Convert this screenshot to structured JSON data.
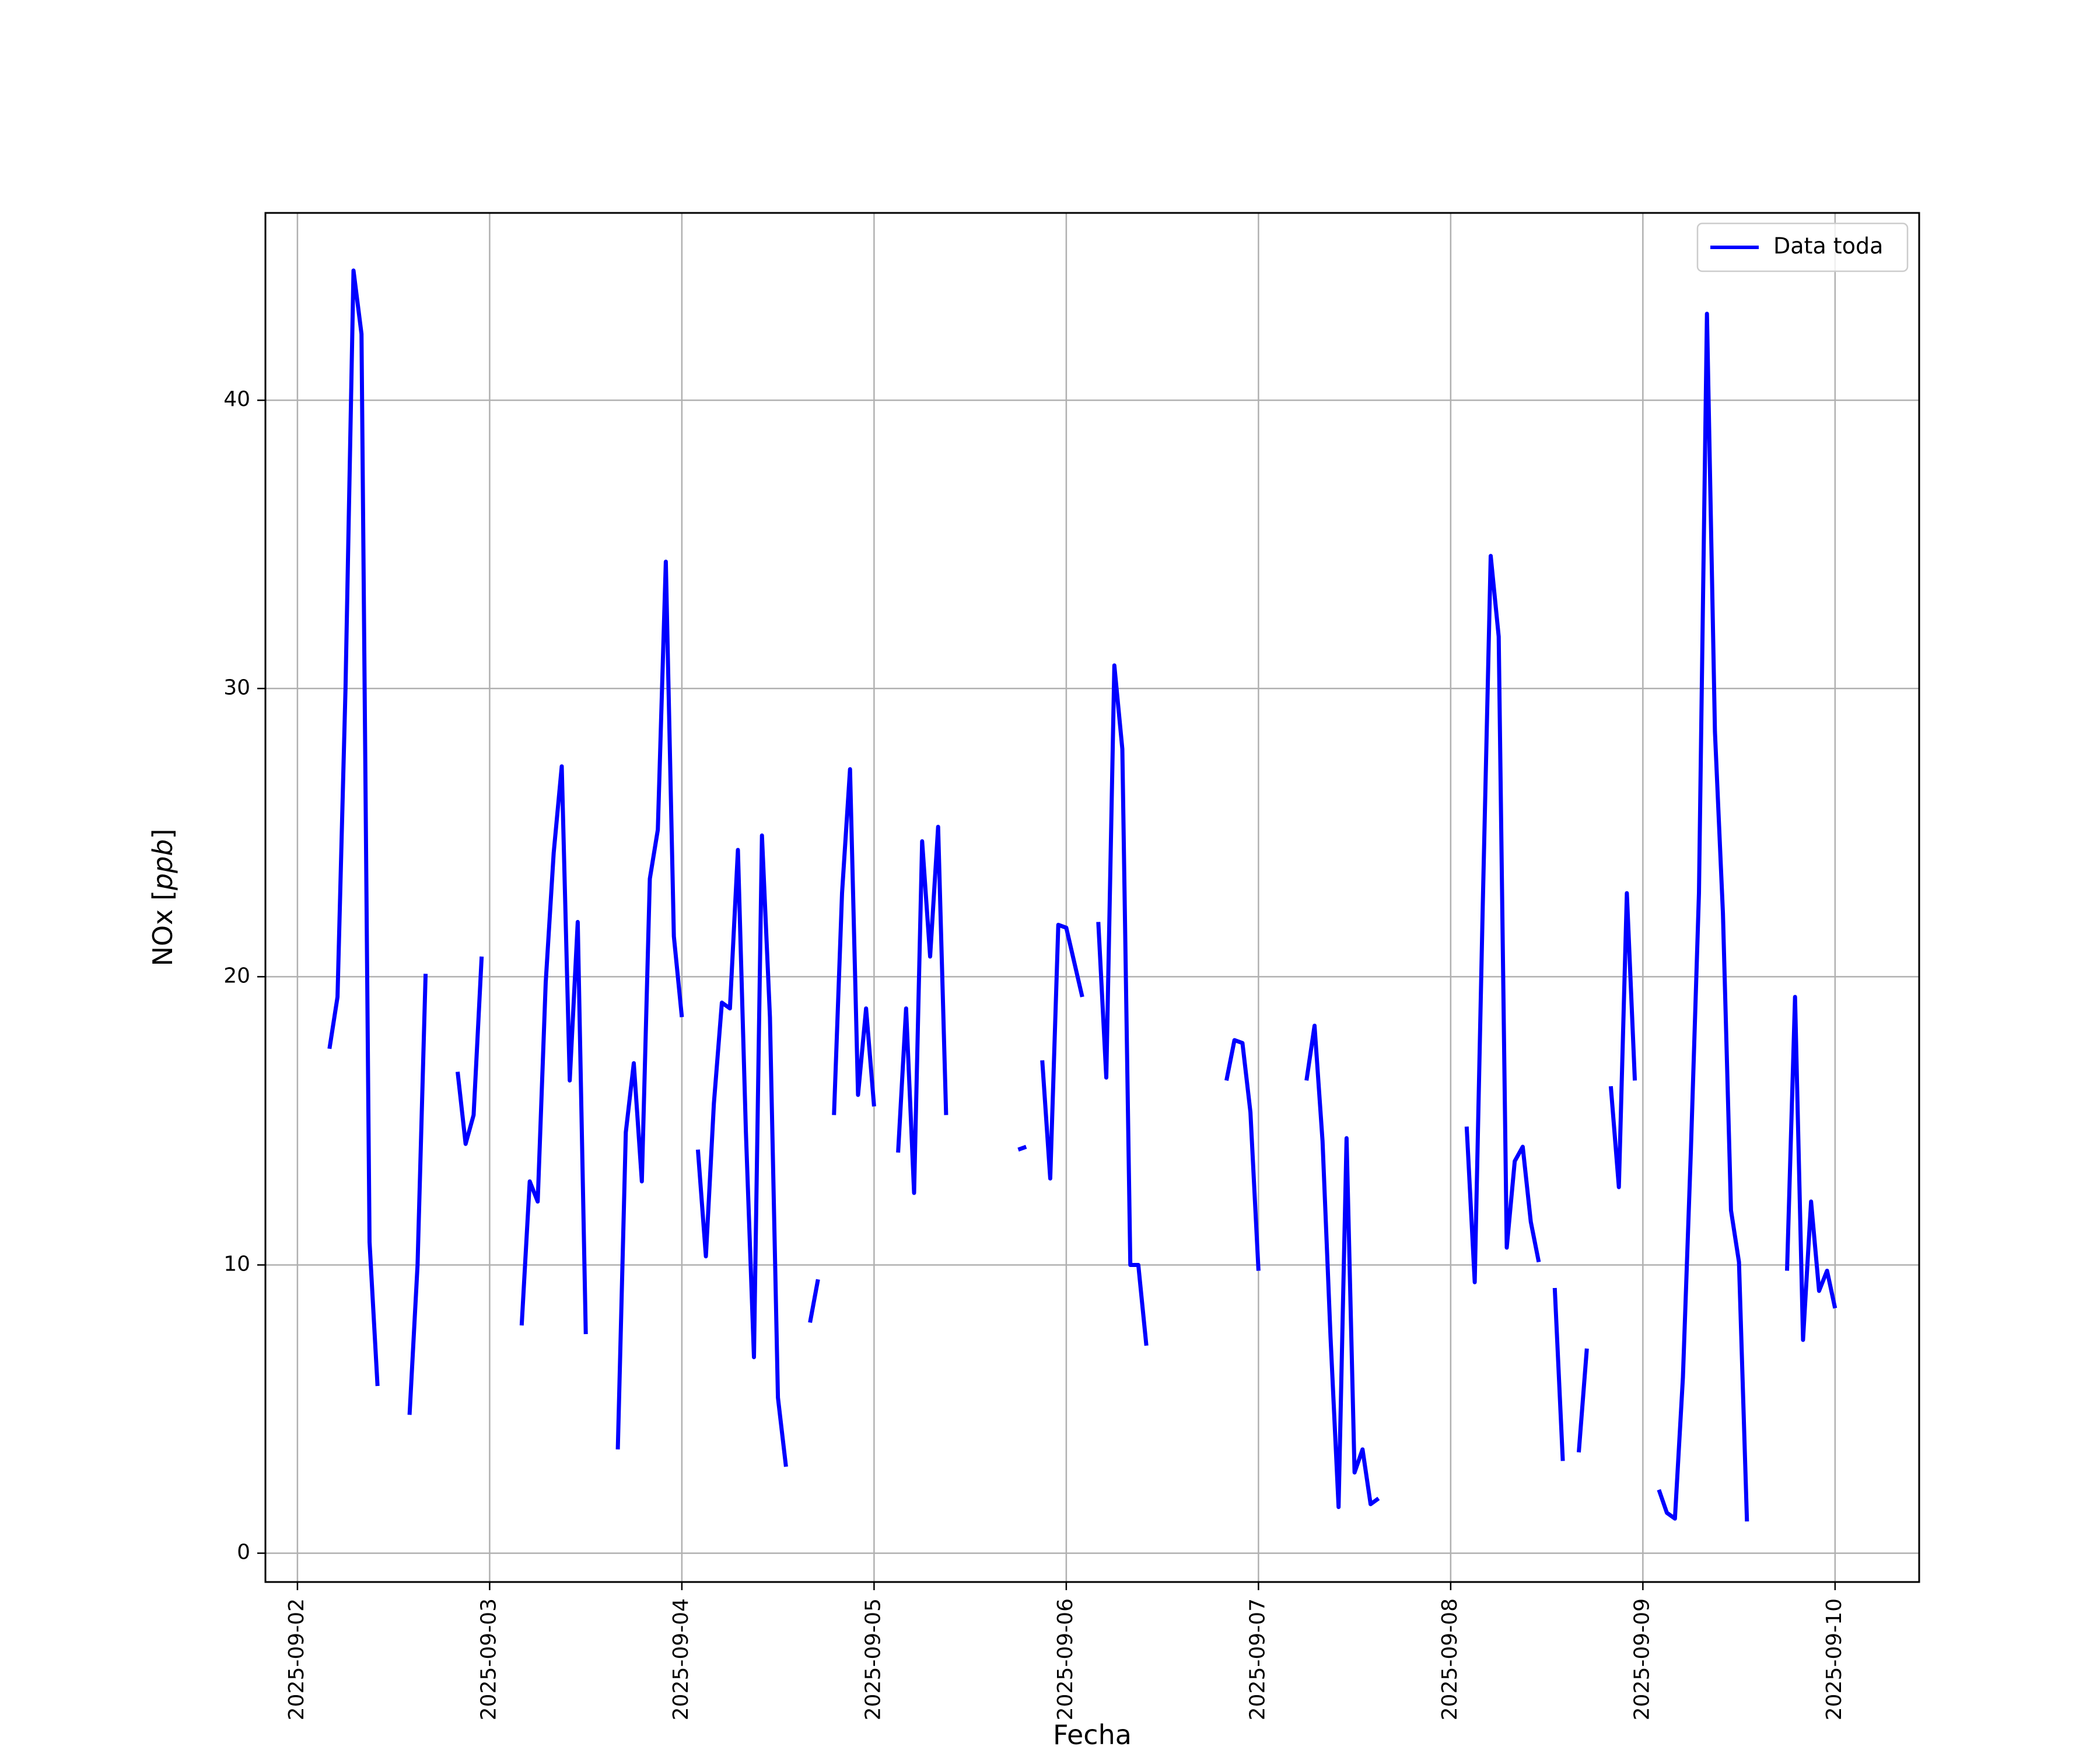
{
  "chart_data": {
    "type": "line",
    "xlabel": "Fecha",
    "ylabel": "NOx [ppb]",
    "x_type": "datetime",
    "xlim": [
      "2025-09-01 20:00",
      "2025-09-10 10:30"
    ],
    "ylim": [
      -1,
      46.5
    ],
    "grid": true,
    "legend_position": "top-right",
    "x_ticks": [
      "2025-09-02",
      "2025-09-03",
      "2025-09-04",
      "2025-09-05",
      "2025-09-06",
      "2025-09-07",
      "2025-09-08",
      "2025-09-09",
      "2025-09-10"
    ],
    "y_ticks": [
      0,
      10,
      20,
      30,
      40
    ],
    "series": [
      {
        "name": "Data toda",
        "color": "#0000ff",
        "segments": [
          [
            [
              "2025-09-02 04:00",
              17.5
            ],
            [
              "2025-09-02 05:00",
              19.3
            ],
            [
              "2025-09-02 06:00",
              30.0
            ],
            [
              "2025-09-02 07:00",
              44.5
            ],
            [
              "2025-09-02 08:00",
              42.3
            ],
            [
              "2025-09-02 09:00",
              10.8
            ],
            [
              "2025-09-02 10:00",
              5.8
            ]
          ],
          [
            [
              "2025-09-02 14:00",
              4.8
            ],
            [
              "2025-09-02 15:00",
              10.0
            ],
            [
              "2025-09-02 16:00",
              20.1
            ]
          ],
          [
            [
              "2025-09-02 20:00",
              16.7
            ],
            [
              "2025-09-02 21:00",
              14.2
            ],
            [
              "2025-09-02 22:00",
              15.2
            ],
            [
              "2025-09-02 23:00",
              20.7
            ]
          ],
          [
            [
              "2025-09-03 04:00",
              7.9
            ],
            [
              "2025-09-03 05:00",
              12.9
            ],
            [
              "2025-09-03 06:00",
              12.2
            ],
            [
              "2025-09-03 07:00",
              19.8
            ],
            [
              "2025-09-03 08:00",
              24.3
            ],
            [
              "2025-09-03 09:00",
              27.3
            ],
            [
              "2025-09-03 10:00",
              16.4
            ],
            [
              "2025-09-03 11:00",
              21.9
            ],
            [
              "2025-09-03 12:00",
              7.6
            ]
          ],
          [
            [
              "2025-09-03 16:00",
              3.6
            ],
            [
              "2025-09-03 17:00",
              14.6
            ],
            [
              "2025-09-03 18:00",
              17.0
            ],
            [
              "2025-09-03 19:00",
              12.9
            ],
            [
              "2025-09-03 20:00",
              23.4
            ],
            [
              "2025-09-03 21:00",
              25.1
            ],
            [
              "2025-09-03 22:00",
              34.4
            ],
            [
              "2025-09-03 23:00",
              21.4
            ],
            [
              "2025-09-04 00:00",
              18.6
            ]
          ],
          [
            [
              "2025-09-04 02:00",
              14.0
            ],
            [
              "2025-09-04 03:00",
              10.3
            ],
            [
              "2025-09-04 04:00",
              15.6
            ],
            [
              "2025-09-04 05:00",
              19.1
            ],
            [
              "2025-09-04 06:00",
              18.9
            ],
            [
              "2025-09-04 07:00",
              24.4
            ],
            [
              "2025-09-04 08:00",
              14.6
            ],
            [
              "2025-09-04 09:00",
              6.8
            ],
            [
              "2025-09-04 10:00",
              24.9
            ],
            [
              "2025-09-04 11:00",
              18.6
            ],
            [
              "2025-09-04 12:00",
              5.4
            ],
            [
              "2025-09-04 13:00",
              3.0
            ]
          ],
          [
            [
              "2025-09-04 16:00",
              8.0
            ],
            [
              "2025-09-04 17:00",
              9.5
            ]
          ],
          [
            [
              "2025-09-04 19:00",
              15.2
            ],
            [
              "2025-09-04 20:00",
              22.9
            ],
            [
              "2025-09-04 21:00",
              27.2
            ],
            [
              "2025-09-04 22:00",
              15.9
            ],
            [
              "2025-09-04 23:00",
              18.9
            ],
            [
              "2025-09-05 00:00",
              15.5
            ]
          ],
          [
            [
              "2025-09-05 03:00",
              13.9
            ],
            [
              "2025-09-05 04:00",
              18.9
            ],
            [
              "2025-09-05 05:00",
              12.5
            ],
            [
              "2025-09-05 06:00",
              24.7
            ],
            [
              "2025-09-05 07:00",
              20.7
            ],
            [
              "2025-09-05 08:00",
              25.2
            ],
            [
              "2025-09-05 09:00",
              15.2
            ]
          ],
          [
            [
              "2025-09-05 18:00",
              14.0
            ],
            [
              "2025-09-05 19:00",
              14.1
            ]
          ],
          [
            [
              "2025-09-05 21:00",
              17.1
            ],
            [
              "2025-09-05 22:00",
              13.0
            ],
            [
              "2025-09-05 23:00",
              21.8
            ],
            [
              "2025-09-06 00:00",
              21.7
            ],
            [
              "2025-09-06 01:00",
              20.5
            ],
            [
              "2025-09-06 02:00",
              19.3
            ]
          ],
          [
            [
              "2025-09-06 04:00",
              21.9
            ],
            [
              "2025-09-06 05:00",
              16.5
            ],
            [
              "2025-09-06 06:00",
              30.8
            ],
            [
              "2025-09-06 07:00",
              27.9
            ],
            [
              "2025-09-06 08:00",
              10.0
            ],
            [
              "2025-09-06 09:00",
              10.0
            ],
            [
              "2025-09-06 10:00",
              7.2
            ]
          ],
          [
            [
              "2025-09-06 20:00",
              16.4
            ],
            [
              "2025-09-06 21:00",
              17.8
            ],
            [
              "2025-09-06 22:00",
              17.7
            ],
            [
              "2025-09-06 23:00",
              15.3
            ],
            [
              "2025-09-07 00:00",
              9.8
            ]
          ],
          [
            [
              "2025-09-07 06:00",
              16.4
            ],
            [
              "2025-09-07 07:00",
              18.3
            ],
            [
              "2025-09-07 08:00",
              14.3
            ],
            [
              "2025-09-07 09:00",
              7.5
            ],
            [
              "2025-09-07 10:00",
              1.6
            ],
            [
              "2025-09-07 11:00",
              14.4
            ],
            [
              "2025-09-07 12:00",
              2.8
            ],
            [
              "2025-09-07 13:00",
              3.6
            ],
            [
              "2025-09-07 14:00",
              1.7
            ],
            [
              "2025-09-07 15:00",
              1.9
            ]
          ],
          [
            [
              "2025-09-08 02:00",
              14.8
            ],
            [
              "2025-09-08 03:00",
              9.4
            ],
            [
              "2025-09-08 04:00",
              22.4
            ],
            [
              "2025-09-08 05:00",
              34.6
            ],
            [
              "2025-09-08 06:00",
              31.8
            ],
            [
              "2025-09-08 07:00",
              10.6
            ],
            [
              "2025-09-08 08:00",
              13.6
            ],
            [
              "2025-09-08 09:00",
              14.1
            ],
            [
              "2025-09-08 10:00",
              11.5
            ],
            [
              "2025-09-08 11:00",
              10.1
            ]
          ],
          [
            [
              "2025-09-08 13:00",
              9.2
            ],
            [
              "2025-09-08 14:00",
              3.2
            ]
          ],
          [
            [
              "2025-09-08 16:00",
              3.5
            ],
            [
              "2025-09-08 17:00",
              7.1
            ]
          ],
          [
            [
              "2025-09-08 20:00",
              16.2
            ],
            [
              "2025-09-08 21:00",
              12.7
            ],
            [
              "2025-09-08 22:00",
              22.9
            ],
            [
              "2025-09-08 23:00",
              16.4
            ]
          ],
          [
            [
              "2025-09-09 02:00",
              2.2
            ],
            [
              "2025-09-09 03:00",
              1.4
            ],
            [
              "2025-09-09 04:00",
              1.2
            ],
            [
              "2025-09-09 05:00",
              6.1
            ],
            [
              "2025-09-09 06:00",
              14.0
            ],
            [
              "2025-09-09 07:00",
              22.9
            ],
            [
              "2025-09-09 08:00",
              43.0
            ],
            [
              "2025-09-09 09:00",
              28.5
            ],
            [
              "2025-09-09 10:00",
              22.2
            ],
            [
              "2025-09-09 11:00",
              11.9
            ],
            [
              "2025-09-09 12:00",
              10.1
            ],
            [
              "2025-09-09 13:00",
              1.1
            ]
          ],
          [
            [
              "2025-09-09 18:00",
              9.8
            ],
            [
              "2025-09-09 19:00",
              19.3
            ],
            [
              "2025-09-09 20:00",
              7.4
            ],
            [
              "2025-09-09 21:00",
              12.2
            ],
            [
              "2025-09-09 22:00",
              9.1
            ],
            [
              "2025-09-09 23:00",
              9.8
            ],
            [
              "2025-09-10 00:00",
              8.5
            ]
          ]
        ]
      }
    ]
  }
}
